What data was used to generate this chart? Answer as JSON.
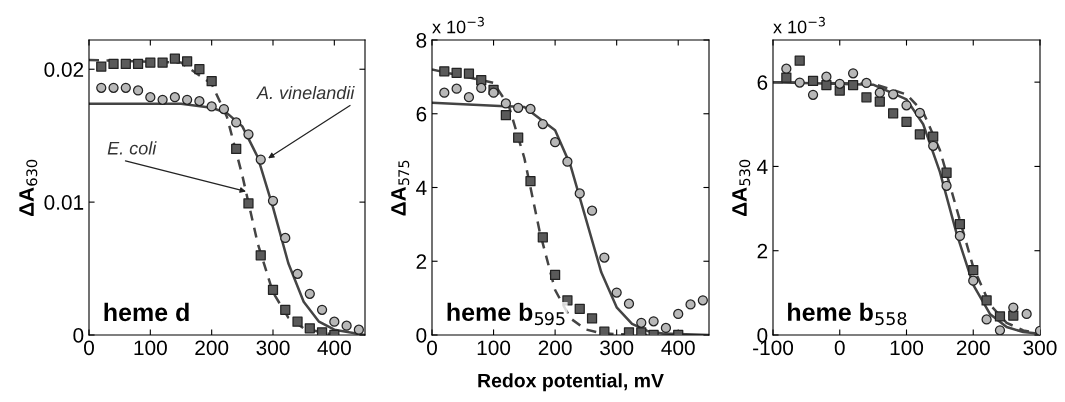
{
  "chart_data": [
    {
      "type": "scatter",
      "ylabel": "ΔA$_{630}$",
      "xlim": [
        0,
        450
      ],
      "ylim": [
        0,
        0.0222
      ],
      "xticks": [
        0,
        100,
        200,
        300,
        400
      ],
      "yticks": [
        0,
        0.01,
        0.02
      ],
      "grid": false,
      "legend": false,
      "annotations": [
        "heme d",
        {
          "text": "A. vinelandii",
          "x": 292,
          "y": 0.0133
        },
        {
          "text": "E. coli",
          "x": 256,
          "y": 0.0108
        }
      ],
      "series": [
        {
          "marker": "square",
          "color": "#5a5a5a",
          "x": [
            20,
            40,
            60,
            80,
            100,
            120,
            140,
            160,
            180,
            200,
            220,
            240,
            260,
            280,
            300,
            320,
            340,
            360,
            380,
            400
          ],
          "values": [
            0.0202,
            0.0204,
            0.0204,
            0.0204,
            0.0205,
            0.0205,
            0.0208,
            0.0206,
            0.02,
            0.0191,
            null,
            0.014,
            0.0099,
            0.006,
            0.0034,
            0.0019,
            0.001,
            0.0005,
            0.0002,
            0
          ]
        },
        {
          "marker": "circle",
          "color": "#b8b8b8",
          "x": [
            20,
            40,
            60,
            80,
            100,
            120,
            140,
            160,
            180,
            200,
            220,
            240,
            260,
            280,
            300,
            320,
            340,
            360,
            380,
            400,
            420,
            440
          ],
          "values": [
            0.0186,
            0.0186,
            0.0186,
            0.0184,
            0.0179,
            0.0177,
            0.0179,
            0.0177,
            0.0176,
            0.0172,
            0.017,
            0.016,
            0.0151,
            0.0132,
            0.0101,
            0.0073,
            0.0046,
            0.0031,
            0.0019,
            0.001,
            0.0007,
            0.0004
          ]
        },
        {
          "type": "line",
          "line_style": "dashed",
          "color": "#444444",
          "x": [
            0,
            150,
            200,
            225,
            250,
            275,
            300,
            325,
            350,
            400
          ],
          "values": [
            0.0207,
            0.0205,
            0.0189,
            0.0164,
            0.012,
            0.0069,
            0.0032,
            0.0013,
            0.0005,
            0
          ]
        },
        {
          "type": "line",
          "line_style": "solid",
          "color": "#444444",
          "x": [
            0,
            150,
            200,
            225,
            250,
            275,
            300,
            325,
            350,
            375,
            400,
            450
          ],
          "values": [
            0.0174,
            0.0174,
            0.0171,
            0.0167,
            0.0157,
            0.0134,
            0.0096,
            0.0054,
            0.0025,
            0.001,
            0.0004,
            0
          ]
        }
      ]
    },
    {
      "type": "scatter",
      "xlabel": "Redox potential, mV",
      "ylabel": "ΔA$_{575}$",
      "xlim": [
        0,
        450
      ],
      "ylim": [
        0,
        8
      ],
      "xticks": [
        0,
        100,
        200,
        300,
        400
      ],
      "yticks": [
        0,
        2,
        4,
        6,
        8
      ],
      "grid": false,
      "legend": false,
      "annotations": [
        "heme b$_{595}$",
        "x 10$^{−3}$"
      ],
      "series": [
        {
          "marker": "square",
          "color": "#5a5a5a",
          "x": [
            20,
            40,
            60,
            80,
            100,
            120,
            140,
            160,
            180,
            200,
            220,
            240,
            260,
            280,
            320,
            340,
            360,
            400
          ],
          "values": [
            7.15,
            7.11,
            7.09,
            6.91,
            6.65,
            5.96,
            5.35,
            4.17,
            2.65,
            1.63,
            0.94,
            0.71,
            0.45,
            0.09,
            0.07,
            0.07,
            0,
            0
          ]
        },
        {
          "marker": "circle",
          "color": "#b8b8b8",
          "x": [
            20,
            40,
            60,
            80,
            100,
            120,
            140,
            160,
            180,
            200,
            220,
            240,
            260,
            280,
            300,
            320,
            340,
            360,
            380,
            400,
            420,
            440
          ],
          "values": [
            6.57,
            6.68,
            6.45,
            6.7,
            6.57,
            6.28,
            6.16,
            6.13,
            5.72,
            5.23,
            4.7,
            3.84,
            3.37,
            2.1,
            1.15,
            0.85,
            0.33,
            0.37,
            0.19,
            0.57,
            0.83,
            0.94
          ]
        },
        {
          "type": "line",
          "line_style": "dashed",
          "color": "#444444",
          "x": [
            0,
            100,
            125,
            150,
            175,
            200,
            225,
            250,
            275,
            300,
            350
          ],
          "values": [
            7.2,
            6.84,
            6.2,
            4.8,
            2.8,
            1.22,
            0.45,
            0.15,
            0.05,
            0.02,
            0
          ]
        },
        {
          "type": "line",
          "line_style": "solid",
          "color": "#444444",
          "x": [
            0,
            150,
            200,
            225,
            250,
            275,
            300,
            325,
            350,
            375,
            450
          ],
          "values": [
            6.3,
            6.18,
            5.55,
            4.6,
            3.15,
            1.7,
            0.75,
            0.3,
            0.11,
            0.04,
            0
          ]
        }
      ]
    },
    {
      "type": "scatter",
      "ylabel": "ΔA$_{530}$",
      "xlim": [
        -100,
        300
      ],
      "ylim": [
        0,
        7
      ],
      "xticks": [
        -100,
        0,
        100,
        200,
        300
      ],
      "yticks": [
        0,
        2,
        4,
        6
      ],
      "grid": false,
      "legend": false,
      "annotations": [
        "heme b$_{558}$",
        "x 10$^{−3}$"
      ],
      "series": [
        {
          "marker": "square",
          "color": "#5a5a5a",
          "x": [
            -80,
            -60,
            -40,
            -20,
            0,
            20,
            40,
            60,
            80,
            100,
            120,
            140,
            160,
            180,
            200,
            220,
            240,
            260
          ],
          "values": [
            6.11,
            6.51,
            6.03,
            5.93,
            5.8,
            5.93,
            5.64,
            5.54,
            5.26,
            5.06,
            4.76,
            4.71,
            3.85,
            2.63,
            1.54,
            0.82,
            0.44,
            0.46
          ]
        },
        {
          "marker": "circle",
          "color": "#b8b8b8",
          "x": [
            -80,
            -60,
            -40,
            -20,
            0,
            20,
            40,
            60,
            80,
            100,
            120,
            140,
            160,
            180,
            200,
            220,
            240,
            260,
            280,
            300
          ],
          "values": [
            6.32,
            5.99,
            5.7,
            6.13,
            5.96,
            6.21,
            5.98,
            5.75,
            5.71,
            5.45,
            5.27,
            4.49,
            3.54,
            2.35,
            1.29,
            0.37,
            0.11,
            0.65,
            0.5,
            0.1
          ]
        },
        {
          "type": "line",
          "line_style": "dashed",
          "color": "#444444",
          "x": [
            -100,
            50,
            100,
            125,
            150,
            175,
            200,
            225,
            250,
            275,
            300
          ],
          "values": [
            6.0,
            5.96,
            5.71,
            5.29,
            4.39,
            3.0,
            1.61,
            0.72,
            0.29,
            0.11,
            0.04
          ]
        },
        {
          "type": "line",
          "line_style": "solid",
          "color": "#444444",
          "x": [
            -100,
            50,
            100,
            125,
            150,
            175,
            200,
            225,
            250,
            275,
            300
          ],
          "values": [
            6.0,
            5.94,
            5.59,
            5.0,
            3.87,
            2.41,
            1.19,
            0.5,
            0.19,
            0.07,
            0.03
          ]
        }
      ]
    }
  ]
}
